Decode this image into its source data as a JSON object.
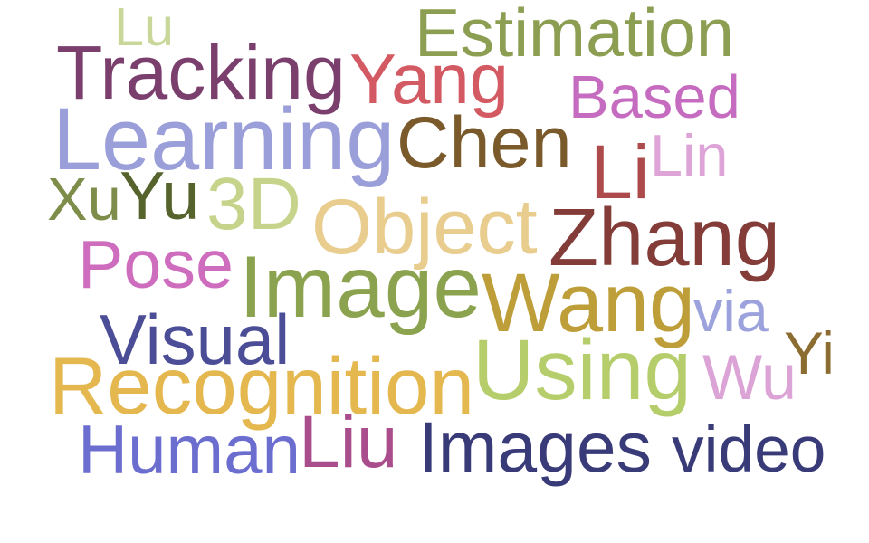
{
  "words": [
    {
      "text": "Lu",
      "color": "#c9d89a"
    },
    {
      "text": "Estimation",
      "color": "#8c9e52"
    },
    {
      "text": "Tracking",
      "color": "#7b3f6e"
    },
    {
      "text": "Yang",
      "color": "#d35a63"
    },
    {
      "text": "Based",
      "color": "#c56cc0"
    },
    {
      "text": "Learning",
      "color": "#9a9fda"
    },
    {
      "text": "Chen",
      "color": "#7a5a2a"
    },
    {
      "text": "Lin",
      "color": "#dea4d7"
    },
    {
      "text": "Li",
      "color": "#ad4a4b"
    },
    {
      "text": "Xu",
      "color": "#7e8d49"
    },
    {
      "text": "Yu",
      "color": "#56632c"
    },
    {
      "text": "3D",
      "color": "#c6d48b"
    },
    {
      "text": "Object",
      "color": "#e8cd8f"
    },
    {
      "text": "Zhang",
      "color": "#843c39"
    },
    {
      "text": "Pose",
      "color": "#ce6dbd"
    },
    {
      "text": "Image",
      "color": "#8ba34e"
    },
    {
      "text": "Wang",
      "color": "#bd9e39"
    },
    {
      "text": "via",
      "color": "#9ca3dc"
    },
    {
      "text": "Visual",
      "color": "#4c4d97"
    },
    {
      "text": "Yi",
      "color": "#8c6d31"
    },
    {
      "text": "Recognition",
      "color": "#e4b84f"
    },
    {
      "text": "Using",
      "color": "#b5ce6b"
    },
    {
      "text": "Wu",
      "color": "#dba3d6"
    },
    {
      "text": "Liu",
      "color": "#a94d8d"
    },
    {
      "text": "Human",
      "color": "#6b6ecf"
    },
    {
      "text": "Images",
      "color": "#393b79"
    },
    {
      "text": "video",
      "color": "#393b79"
    }
  ]
}
